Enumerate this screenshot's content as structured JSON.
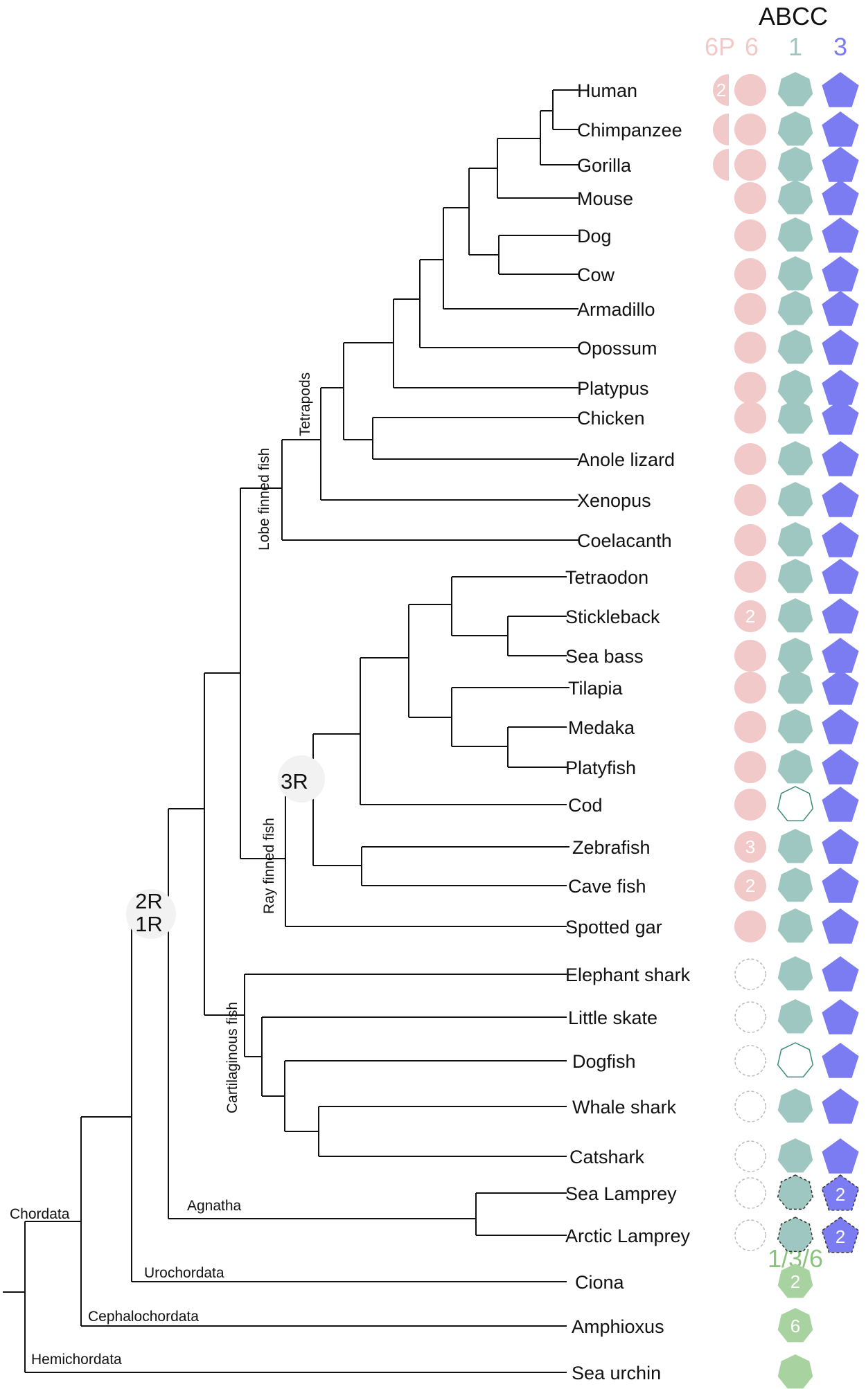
{
  "header": {
    "title": "ABCC",
    "columns": [
      {
        "key": "6P",
        "label": "6P",
        "color": "#f2c9c9"
      },
      {
        "key": "6",
        "label": "6",
        "color": "#f2c9c9"
      },
      {
        "key": "1",
        "label": "1",
        "color": "#9fc7c2"
      },
      {
        "key": "3",
        "label": "3",
        "color": "#7b7bf2"
      }
    ]
  },
  "colors": {
    "abcc6": "#f2c9c9",
    "abcc1": "#9fc7c2",
    "abcc3": "#7b7bf2",
    "ancestral": "#a8d3a0",
    "ancestral_text": "#8bc27e",
    "line": "#111111"
  },
  "clades": {
    "tetrapods": "Tetrapods",
    "lobe_finned": "Lobe finned fish",
    "ray_finned": "Ray finned fish",
    "cartilaginous": "Cartilaginous fish",
    "agnatha": "Agnatha",
    "urochordata": "Urochordata",
    "cephalochordata": "Cephalochordata",
    "hemichordata": "Hemichordata",
    "chordata": "Chordata"
  },
  "events": {
    "r3": "3R",
    "r2": "2R",
    "r1": "1R"
  },
  "ancestral_label": "1/3/6",
  "species": [
    {
      "name": "Human",
      "abcc6p": "half",
      "abcc6p_count": "2",
      "abcc6": "filled",
      "abcc1": "filled",
      "abcc3": "filled"
    },
    {
      "name": "Chimpanzee",
      "abcc6p": "half",
      "abcc6": "filled",
      "abcc1": "filled",
      "abcc3": "filled"
    },
    {
      "name": "Gorilla",
      "abcc6p": "half",
      "abcc6": "filled",
      "abcc1": "filled",
      "abcc3": "filled"
    },
    {
      "name": "Mouse",
      "abcc6": "filled",
      "abcc1": "filled",
      "abcc3": "filled"
    },
    {
      "name": "Dog",
      "abcc6": "filled",
      "abcc1": "filled",
      "abcc3": "filled"
    },
    {
      "name": "Cow",
      "abcc6": "filled",
      "abcc1": "filled",
      "abcc3": "filled"
    },
    {
      "name": "Armadillo",
      "abcc6": "filled",
      "abcc1": "filled",
      "abcc3": "filled"
    },
    {
      "name": "Opossum",
      "abcc6": "filled",
      "abcc1": "filled",
      "abcc3": "filled"
    },
    {
      "name": "Platypus",
      "abcc6": "filled",
      "abcc1": "filled",
      "abcc3": "filled"
    },
    {
      "name": "Chicken",
      "abcc6": "filled",
      "abcc1": "filled",
      "abcc3": "filled"
    },
    {
      "name": "Anole lizard",
      "abcc6": "filled",
      "abcc1": "filled",
      "abcc3": "filled"
    },
    {
      "name": "Xenopus",
      "abcc6": "filled",
      "abcc1": "filled",
      "abcc3": "filled"
    },
    {
      "name": "Coelacanth",
      "abcc6": "filled",
      "abcc1": "filled",
      "abcc3": "filled"
    },
    {
      "name": "Tetraodon",
      "abcc6": "filled",
      "abcc1": "filled",
      "abcc3": "filled"
    },
    {
      "name": "Stickleback",
      "abcc6": "filled",
      "abcc6_count": "2",
      "abcc1": "filled",
      "abcc3": "filled"
    },
    {
      "name": "Sea bass",
      "abcc6": "filled",
      "abcc1": "filled",
      "abcc3": "filled"
    },
    {
      "name": "Tilapia",
      "abcc6": "filled",
      "abcc1": "filled",
      "abcc3": "filled"
    },
    {
      "name": "Medaka",
      "abcc6": "filled",
      "abcc1": "filled",
      "abcc3": "filled"
    },
    {
      "name": "Platyfish",
      "abcc6": "filled",
      "abcc1": "filled",
      "abcc3": "filled"
    },
    {
      "name": "Cod",
      "abcc6": "filled",
      "abcc1": "outline",
      "abcc3": "filled"
    },
    {
      "name": "Zebrafish",
      "abcc6": "filled",
      "abcc6_count": "3",
      "abcc1": "filled",
      "abcc3": "filled"
    },
    {
      "name": "Cave fish",
      "abcc6": "filled",
      "abcc6_count": "2",
      "abcc1": "filled",
      "abcc3": "filled"
    },
    {
      "name": "Spotted gar",
      "abcc6": "filled",
      "abcc1": "filled",
      "abcc3": "filled"
    },
    {
      "name": "Elephant shark",
      "abcc6": "dashed",
      "abcc1": "filled",
      "abcc3": "filled"
    },
    {
      "name": "Little skate",
      "abcc6": "dashed",
      "abcc1": "filled",
      "abcc3": "filled"
    },
    {
      "name": "Dogfish",
      "abcc6": "dashed",
      "abcc1": "outline",
      "abcc3": "filled"
    },
    {
      "name": "Whale shark",
      "abcc6": "dashed",
      "abcc1": "filled",
      "abcc3": "filled"
    },
    {
      "name": "Catshark",
      "abcc6": "dashed",
      "abcc1": "filled",
      "abcc3": "filled"
    },
    {
      "name": "Sea Lamprey",
      "abcc6": "dashed",
      "abcc1": "dashed-filled",
      "abcc3": "dashed-filled",
      "abcc3_count": "2"
    },
    {
      "name": "Arctic Lamprey",
      "abcc6": "dashed",
      "abcc1": "dashed-filled",
      "abcc3": "dashed-filled",
      "abcc3_count": "2"
    },
    {
      "name": "Ciona",
      "ancestral": "filled",
      "ancestral_count": "2"
    },
    {
      "name": "Amphioxus",
      "ancestral": "filled",
      "ancestral_count": "6"
    },
    {
      "name": "Sea urchin",
      "ancestral": "filled"
    }
  ]
}
